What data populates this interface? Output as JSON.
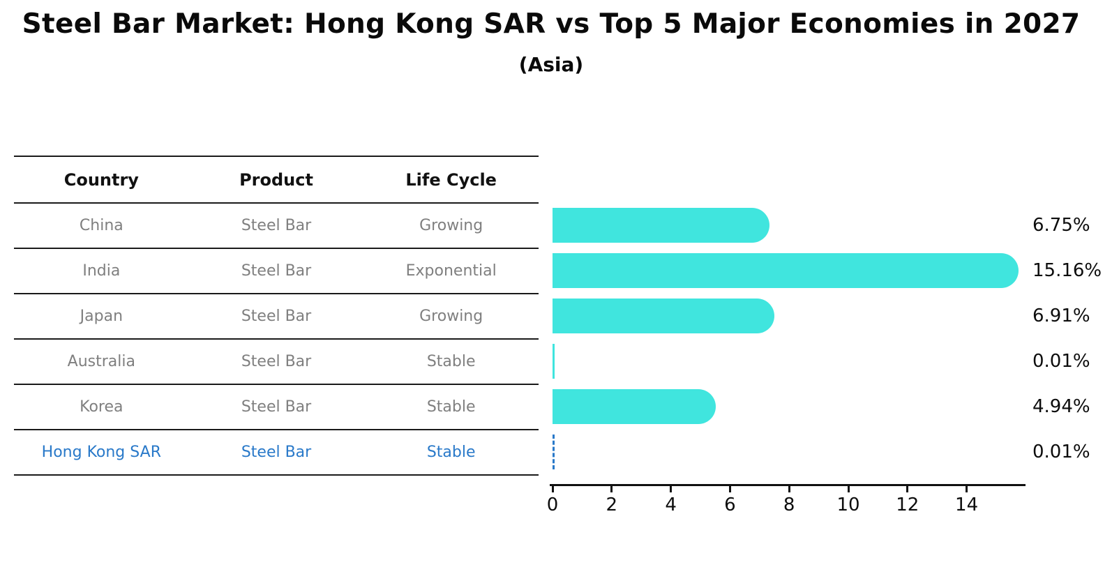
{
  "page": {
    "title": "Steel Bar Market: Hong Kong SAR vs Top 5 Major Economies in 2027",
    "subtitle": "(Asia)"
  },
  "table": {
    "headers": [
      "Country",
      "Product",
      "Life Cycle"
    ]
  },
  "chart_data": {
    "type": "bar",
    "orientation": "horizontal",
    "title": "Steel Bar Market: Hong Kong SAR vs Top 5 Major Economies in 2027",
    "subtitle": "(Asia)",
    "unit": "%",
    "grid": false,
    "legend": false,
    "x_ticks": [
      0,
      2,
      4,
      6,
      8,
      10,
      12,
      14
    ],
    "x_range": [
      0,
      16
    ],
    "colors": {
      "bar": "#40E5DE",
      "highlight": "#2979c9",
      "axis": "#111111",
      "row_text": "#7f7f7f",
      "value_text": "#0d0d0d"
    },
    "rows": [
      {
        "country": "China",
        "product": "Steel Bar",
        "life_cycle": "Growing",
        "value": 6.75,
        "value_label": "6.75%",
        "bar_style": "solid",
        "highlight": false
      },
      {
        "country": "India",
        "product": "Steel Bar",
        "life_cycle": "Exponential",
        "value": 15.16,
        "value_label": "15.16%",
        "bar_style": "solid",
        "highlight": false
      },
      {
        "country": "Japan",
        "product": "Steel Bar",
        "life_cycle": "Growing",
        "value": 6.91,
        "value_label": "6.91%",
        "bar_style": "solid",
        "highlight": false
      },
      {
        "country": "Australia",
        "product": "Steel Bar",
        "life_cycle": "Stable",
        "value": 0.01,
        "value_label": "0.01%",
        "bar_style": "hairline",
        "highlight": false
      },
      {
        "country": "Korea",
        "product": "Steel Bar",
        "life_cycle": "Stable",
        "value": 4.94,
        "value_label": "4.94%",
        "bar_style": "solid",
        "highlight": false
      },
      {
        "country": "Hong Kong SAR",
        "product": "Steel Bar",
        "life_cycle": "Stable",
        "value": 0.01,
        "value_label": "0.01%",
        "bar_style": "dashed-outline",
        "highlight": true
      }
    ]
  }
}
